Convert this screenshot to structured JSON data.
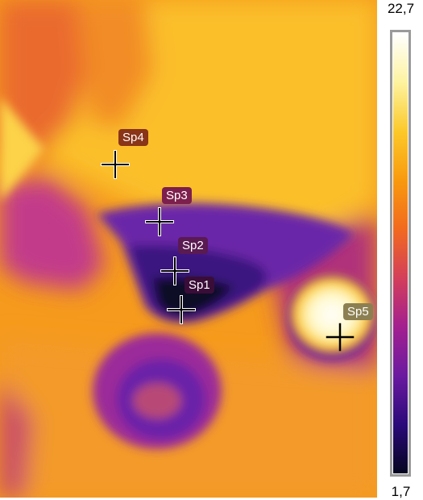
{
  "scale": {
    "max_label": "22,7",
    "min_label": "1,7"
  },
  "spots": [
    {
      "label": "Sp1",
      "tag_color": "#3a0d38"
    },
    {
      "label": "Sp2",
      "tag_color": "#5a1a52"
    },
    {
      "label": "Sp3",
      "tag_color": "#7d1f4c"
    },
    {
      "label": "Sp4",
      "tag_color": "#8a3418"
    },
    {
      "label": "Sp5",
      "tag_color": "#8c8052"
    }
  ],
  "palette": {
    "iron": [
      "#05051f",
      "#2b0a7a",
      "#6b1aa0",
      "#a3208f",
      "#d43f59",
      "#f26a1e",
      "#f99a0e",
      "#fcc92a",
      "#fdf3a0",
      "#ffffff"
    ]
  }
}
